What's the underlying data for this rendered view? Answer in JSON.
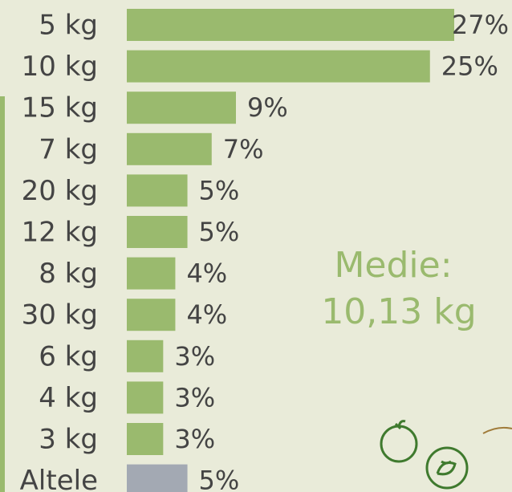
{
  "chart_data": {
    "type": "bar",
    "orientation": "horizontal",
    "categories": [
      "5 kg",
      "10 kg",
      "15 kg",
      "7 kg",
      "20 kg",
      "12 kg",
      "8 kg",
      "30 kg",
      "6 kg",
      "4 kg",
      "3 kg",
      "Altele"
    ],
    "values": [
      27,
      25,
      9,
      7,
      5,
      5,
      4,
      4,
      3,
      3,
      3,
      5
    ],
    "value_labels": [
      "27%",
      "25%",
      "9%",
      "7%",
      "5%",
      "5%",
      "4%",
      "4%",
      "3%",
      "3%",
      "3%",
      "5%"
    ],
    "colors": [
      "#9aba6e",
      "#9aba6e",
      "#9aba6e",
      "#9aba6e",
      "#9aba6e",
      "#9aba6e",
      "#9aba6e",
      "#9aba6e",
      "#9aba6e",
      "#9aba6e",
      "#9aba6e",
      "#a3a9b3"
    ],
    "xlim": [
      0,
      27
    ],
    "annotations": [
      "Medie:",
      "10,13 kg"
    ]
  }
}
